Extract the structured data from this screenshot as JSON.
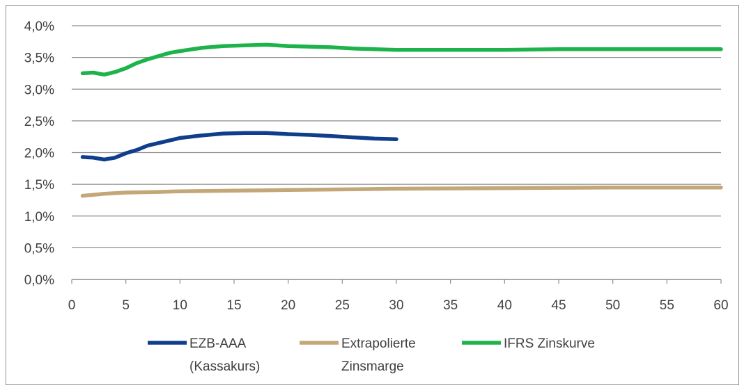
{
  "chart_data": {
    "type": "line",
    "title": "",
    "xlabel": "",
    "ylabel": "",
    "xlim": [
      0,
      60
    ],
    "ylim": [
      0,
      4.0
    ],
    "x_ticks": [
      0,
      5,
      10,
      15,
      20,
      25,
      30,
      35,
      40,
      45,
      50,
      55,
      60
    ],
    "y_ticks": [
      "0,0%",
      "0,5%",
      "1,0%",
      "1,5%",
      "2,0%",
      "2,5%",
      "3,0%",
      "3,5%",
      "4,0%"
    ],
    "grid": "horizontal",
    "legend_position": "bottom",
    "series": [
      {
        "name_lines": [
          "EZB-AAA",
          "(Kassakurs)"
        ],
        "color": "#0f3f8c",
        "x": [
          1,
          2,
          3,
          4,
          5,
          6,
          7,
          8,
          9,
          10,
          12,
          14,
          16,
          18,
          20,
          22,
          24,
          26,
          28,
          30
        ],
        "y": [
          1.93,
          1.92,
          1.89,
          1.92,
          1.99,
          2.04,
          2.11,
          2.15,
          2.19,
          2.23,
          2.27,
          2.3,
          2.31,
          2.31,
          2.29,
          2.28,
          2.26,
          2.24,
          2.22,
          2.21
        ]
      },
      {
        "name_lines": [
          "Extrapolierte",
          "Zinsmarge"
        ],
        "color": "#c3a778",
        "x": [
          1,
          3,
          5,
          8,
          10,
          15,
          20,
          30,
          40,
          50,
          60
        ],
        "y": [
          1.32,
          1.35,
          1.37,
          1.38,
          1.39,
          1.4,
          1.41,
          1.43,
          1.44,
          1.45,
          1.45
        ]
      },
      {
        "name_lines": [
          "IFRS Zinskurve"
        ],
        "color": "#1db34a",
        "x": [
          1,
          2,
          3,
          4,
          5,
          6,
          7,
          8,
          9,
          10,
          12,
          14,
          16,
          18,
          20,
          22,
          24,
          26,
          28,
          30,
          35,
          40,
          45,
          50,
          55,
          60
        ],
        "y": [
          3.25,
          3.26,
          3.23,
          3.27,
          3.33,
          3.41,
          3.47,
          3.52,
          3.57,
          3.6,
          3.65,
          3.68,
          3.69,
          3.7,
          3.68,
          3.67,
          3.66,
          3.64,
          3.63,
          3.62,
          3.62,
          3.62,
          3.63,
          3.63,
          3.63,
          3.63
        ]
      }
    ]
  }
}
